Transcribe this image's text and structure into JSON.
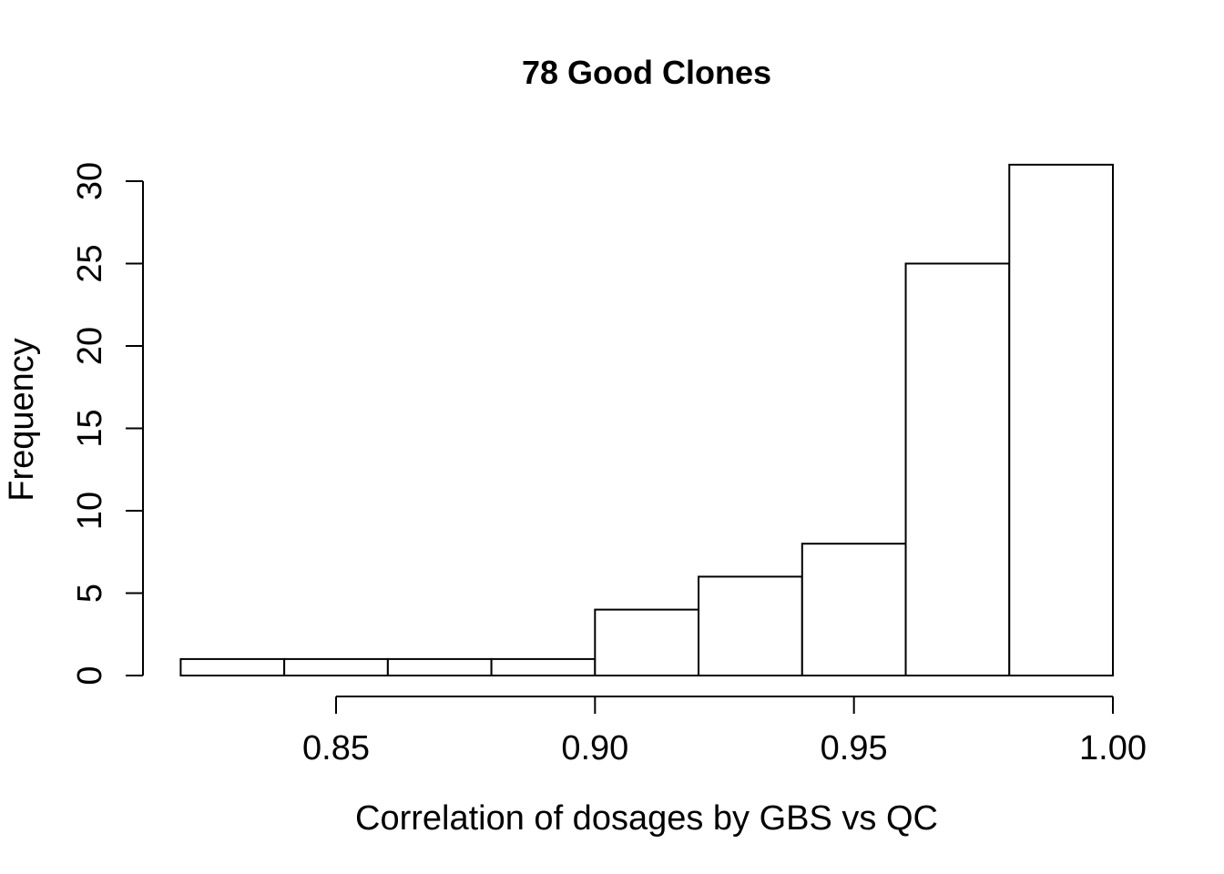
{
  "chart_data": {
    "type": "bar",
    "title": "78 Good Clones",
    "xlabel": "Correlation of dosages by GBS vs QC",
    "ylabel": "Frequency",
    "bins": [
      {
        "start": 0.82,
        "end": 0.84,
        "count": 1
      },
      {
        "start": 0.84,
        "end": 0.86,
        "count": 1
      },
      {
        "start": 0.86,
        "end": 0.88,
        "count": 1
      },
      {
        "start": 0.88,
        "end": 0.9,
        "count": 1
      },
      {
        "start": 0.9,
        "end": 0.92,
        "count": 4
      },
      {
        "start": 0.92,
        "end": 0.94,
        "count": 6
      },
      {
        "start": 0.94,
        "end": 0.96,
        "count": 8
      },
      {
        "start": 0.96,
        "end": 0.98,
        "count": 25
      },
      {
        "start": 0.98,
        "end": 1.0,
        "count": 31
      }
    ],
    "x_ticks": [
      "0.85",
      "0.90",
      "0.95",
      "1.00"
    ],
    "y_ticks": [
      "0",
      "5",
      "10",
      "15",
      "20",
      "25",
      "30"
    ],
    "x_range": [
      0.85,
      1.0
    ],
    "y_range": [
      0,
      30
    ],
    "grid": false,
    "bar_fill": "#ffffff",
    "bar_stroke": "#000000"
  }
}
